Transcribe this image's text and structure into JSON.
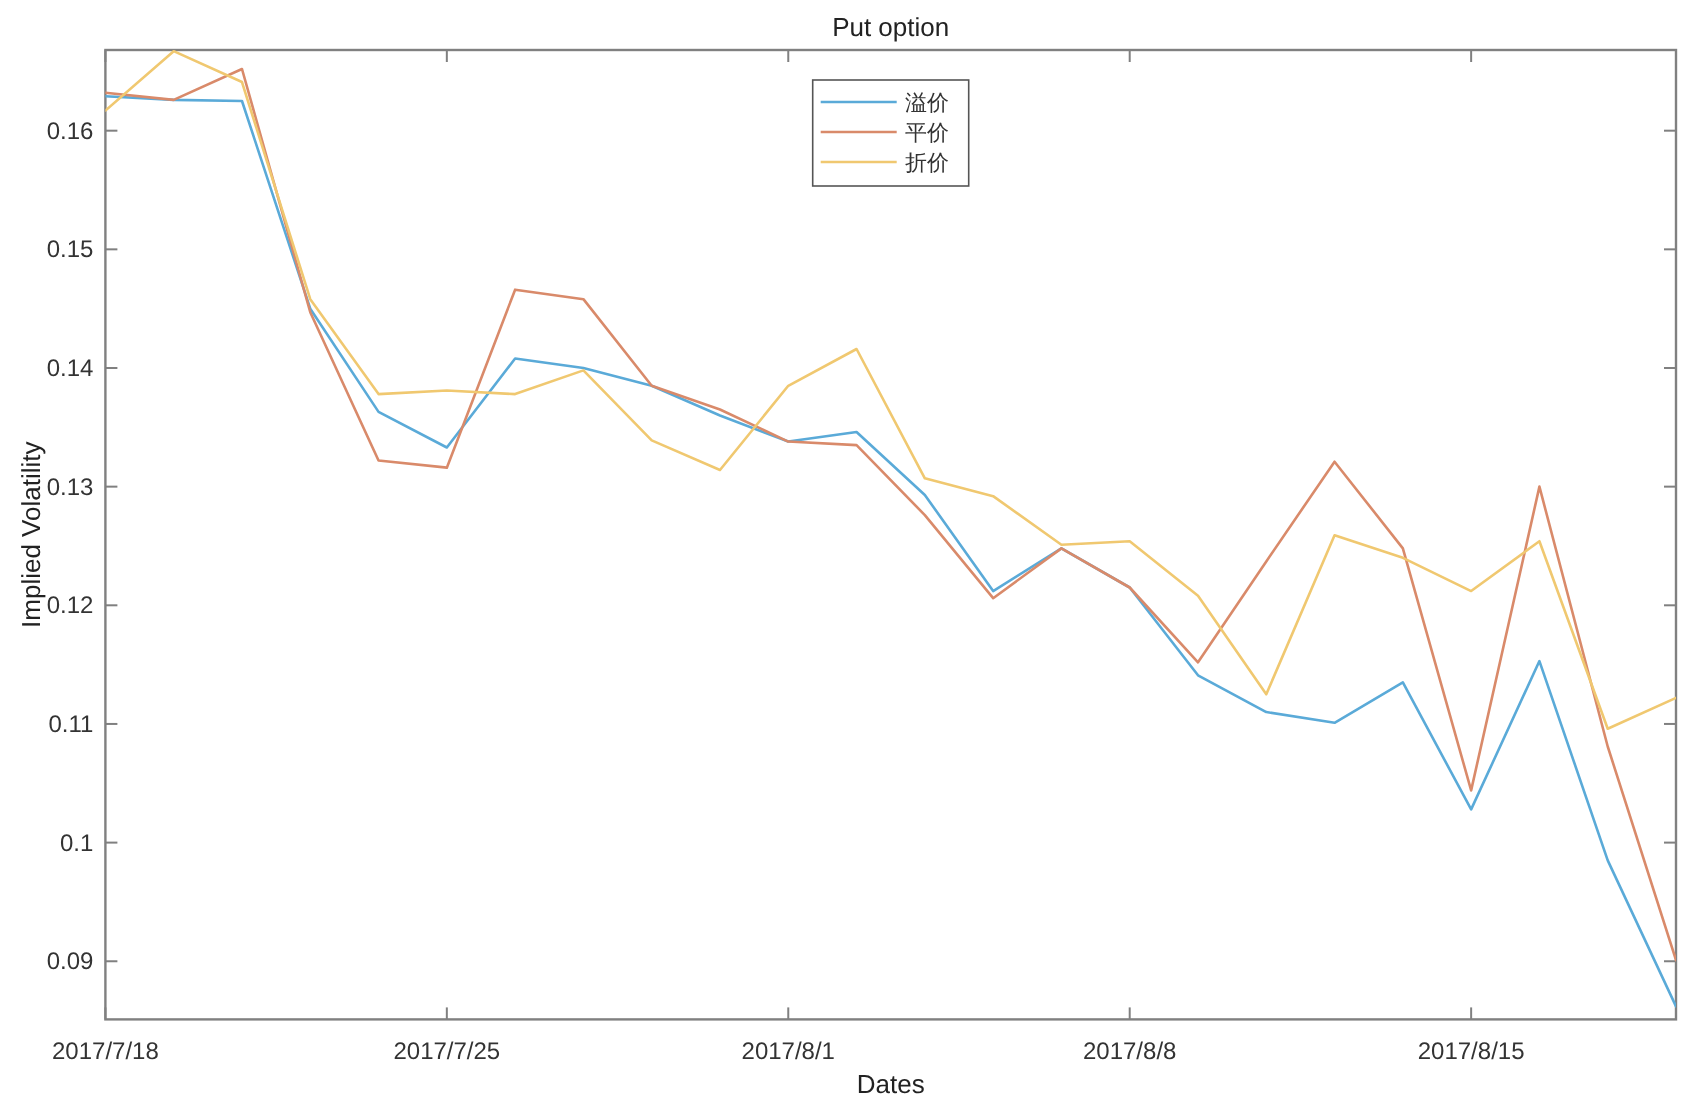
{
  "chart_data": {
    "type": "line",
    "title": "Put option",
    "xlabel": "Dates",
    "ylabel": "Implied Volatility",
    "categories": [
      "2017/7/18",
      null,
      null,
      null,
      null,
      "2017/7/25",
      null,
      null,
      null,
      null,
      "2017/8/1",
      null,
      null,
      null,
      null,
      "2017/8/8",
      null,
      null,
      null,
      null,
      "2017/8/15",
      null,
      null,
      null
    ],
    "series": [
      {
        "name": "溢价",
        "color": "#5aaad8",
        "values": [
          0.1629,
          0.1626,
          0.1625,
          0.145,
          0.1363,
          0.1333,
          0.1408,
          0.14,
          0.1385,
          0.136,
          0.1338,
          0.1346,
          0.1293,
          0.1212,
          0.1248,
          0.1215,
          0.1141,
          0.111,
          0.1101,
          0.1135,
          0.1028,
          0.1153,
          0.0985,
          0.0862
        ]
      },
      {
        "name": "平价",
        "color": "#d98a6a",
        "values": [
          0.1632,
          0.1626,
          0.1652,
          0.1447,
          0.1322,
          0.1316,
          0.1466,
          0.1458,
          0.1385,
          0.1365,
          0.1338,
          0.1335,
          0.1276,
          0.1206,
          0.1248,
          0.1215,
          0.1152,
          0.1237,
          0.1321,
          0.1248,
          0.1044,
          0.13,
          0.1081,
          0.0901
        ]
      },
      {
        "name": "折价",
        "color": "#f0c870",
        "values": [
          0.1617,
          0.1667,
          0.1641,
          0.1458,
          0.1378,
          0.1381,
          0.1378,
          0.1398,
          0.1339,
          0.1314,
          0.1385,
          0.1416,
          0.1307,
          0.1292,
          0.1251,
          0.1254,
          0.1208,
          0.1125,
          0.1259,
          0.124,
          0.1212,
          0.1254,
          0.1096,
          0.1122
        ]
      }
    ],
    "ylim": [
      0.0851,
      0.1668
    ],
    "yticks": [
      0.09,
      0.1,
      0.11,
      0.12,
      0.13,
      0.14,
      0.15,
      0.16
    ],
    "legend": "top"
  }
}
